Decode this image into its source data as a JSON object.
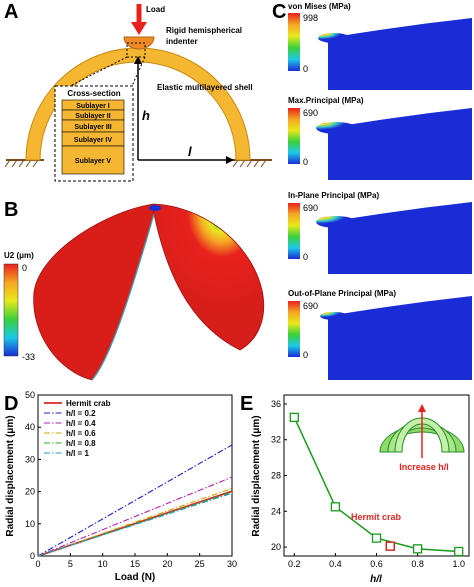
{
  "panels": {
    "a": {
      "letter": "A",
      "load_label": "Load",
      "indenter_label": "Rigid hemispherical indenter",
      "shell_label": "Elastic multilayered shell",
      "cross_section_title": "Cross-section",
      "sublayers": [
        "Sublayer I",
        "Sublayer II",
        "Sublayer III",
        "Sublayer IV",
        "Sublayer V"
      ],
      "h_symbol": "h",
      "l_symbol": "l"
    },
    "b": {
      "letter": "B",
      "colorbar_title": "U2 (μm)",
      "colorbar_max": "0",
      "colorbar_min": "-33"
    },
    "c": {
      "letter": "C",
      "maps": [
        {
          "title": "von Mises (MPa)",
          "max": "998",
          "min": "0"
        },
        {
          "title": "Max.Principal (MPa)",
          "max": "690",
          "min": "0"
        },
        {
          "title": "In-Plane Principal (MPa)",
          "max": "690",
          "min": "0"
        },
        {
          "title": "Out-of-Plane Principal (MPa)",
          "max": "690",
          "min": "0"
        }
      ]
    },
    "d": {
      "letter": "D"
    },
    "e": {
      "letter": "E",
      "inset_label": "Increase h/l",
      "annotation": "Hermit crab"
    }
  },
  "colors": {
    "shell": "#f5b731",
    "indenter": "#f08a24",
    "load_arrow": "#e8211d",
    "map_background": "#1a2cd6",
    "hermit": "#d62a26",
    "e_line": "#1a9a1a"
  },
  "chart_data": [
    {
      "type": "line",
      "xlabel": "Load (N)",
      "ylabel": "Radial displacement (μm)",
      "xlim": [
        0,
        30
      ],
      "ylim": [
        0,
        50
      ],
      "xticks": [
        0,
        5,
        10,
        15,
        20,
        25,
        30
      ],
      "yticks": [
        0,
        10,
        20,
        30,
        40,
        50
      ],
      "legend_position": "top-left",
      "series": [
        {
          "name": "Hermit crab",
          "color": "#d62a26",
          "dash": "solid",
          "x": [
            0,
            30
          ],
          "y": [
            0,
            20.1
          ]
        },
        {
          "name": "h/l = 0.2",
          "color": "#1f1fc8",
          "dash": "dashdot",
          "x": [
            0,
            30
          ],
          "y": [
            0,
            34.5
          ]
        },
        {
          "name": "h/l = 0.4",
          "color": "#b51fb5",
          "dash": "dashdot",
          "x": [
            0,
            30
          ],
          "y": [
            0,
            24.5
          ]
        },
        {
          "name": "h/l = 0.6",
          "color": "#c8a800",
          "dash": "dashdot",
          "x": [
            0,
            30
          ],
          "y": [
            0,
            21
          ]
        },
        {
          "name": "h/l = 0.8",
          "color": "#2aa82a",
          "dash": "dashdot",
          "x": [
            0,
            30
          ],
          "y": [
            0,
            19.8
          ]
        },
        {
          "name": "h/l = 1",
          "color": "#1f9ac8",
          "dash": "dashdot",
          "x": [
            0,
            30
          ],
          "y": [
            0,
            19.5
          ]
        }
      ]
    },
    {
      "type": "line",
      "xlabel": "h/l",
      "ylabel": "Radial displacement (μm)",
      "xlim": [
        0.15,
        1.05
      ],
      "ylim": [
        19,
        37
      ],
      "xticks": [
        0.2,
        0.4,
        0.6,
        0.8,
        1.0
      ],
      "yticks": [
        20,
        24,
        28,
        32,
        36
      ],
      "series": [
        {
          "x": [
            0.2,
            0.4,
            0.6,
            0.8,
            1.0
          ],
          "y": [
            34.5,
            24.5,
            21.0,
            19.8,
            19.5
          ]
        }
      ],
      "hermit_point": {
        "x": 0.667,
        "y": 20.1
      }
    }
  ]
}
